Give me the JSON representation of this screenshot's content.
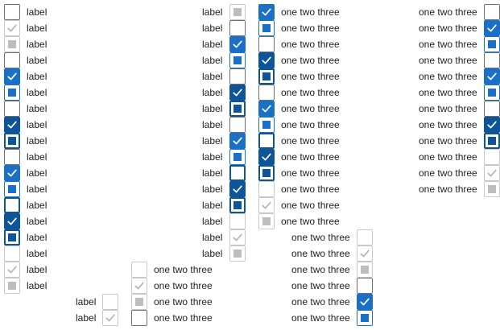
{
  "texts": {
    "label": "label",
    "long": "one two three"
  },
  "colors": {
    "blue": "#1a6fc7",
    "navy": "#0e5597",
    "border": "#6f6f6f",
    "border_light": "#c8c8c8",
    "disabled_fill": "#bdbdbd",
    "check_disabled": "#b5b5b5",
    "text": "#222222"
  },
  "states_legend": {
    "u": "unchecked",
    "c": "checked",
    "i": "indeterminate",
    "fu": "focused-unchecked",
    "fc": "focused-checked",
    "fi": "focused-indeterminate",
    "du": "disabled-unchecked",
    "dc": "disabled-checked",
    "di": "disabled-indeterminate"
  },
  "checkboxes": [
    {
      "id": "a0",
      "text_key": "label",
      "state": "u"
    },
    {
      "id": "a1",
      "text_key": "label",
      "state": "dc"
    },
    {
      "id": "a2",
      "text_key": "label",
      "state": "di"
    },
    {
      "id": "a3",
      "text_key": "label",
      "state": "u"
    },
    {
      "id": "a4",
      "text_key": "label",
      "state": "c"
    },
    {
      "id": "a5",
      "text_key": "label",
      "state": "i"
    },
    {
      "id": "a6",
      "text_key": "label",
      "state": "u"
    },
    {
      "id": "a7",
      "text_key": "label",
      "state": "fc"
    },
    {
      "id": "a8",
      "text_key": "label",
      "state": "fi"
    },
    {
      "id": "a9",
      "text_key": "label",
      "state": "u"
    },
    {
      "id": "a10",
      "text_key": "label",
      "state": "c"
    },
    {
      "id": "a11",
      "text_key": "label",
      "state": "i"
    },
    {
      "id": "a12",
      "text_key": "label",
      "state": "fu"
    },
    {
      "id": "a13",
      "text_key": "label",
      "state": "fc"
    },
    {
      "id": "a14",
      "text_key": "label",
      "state": "fi"
    },
    {
      "id": "a15",
      "text_key": "label",
      "state": "du"
    },
    {
      "id": "a16",
      "text_key": "label",
      "state": "dc"
    },
    {
      "id": "a17",
      "text_key": "label",
      "state": "di"
    },
    {
      "id": "b0",
      "text_key": "label",
      "state": "di"
    },
    {
      "id": "b1",
      "text_key": "label",
      "state": "u"
    },
    {
      "id": "b2",
      "text_key": "label",
      "state": "c"
    },
    {
      "id": "b3",
      "text_key": "label",
      "state": "i"
    },
    {
      "id": "b4",
      "text_key": "label",
      "state": "u"
    },
    {
      "id": "b5",
      "text_key": "label",
      "state": "fc"
    },
    {
      "id": "b6",
      "text_key": "label",
      "state": "fi"
    },
    {
      "id": "b7",
      "text_key": "label",
      "state": "u"
    },
    {
      "id": "b8",
      "text_key": "label",
      "state": "c"
    },
    {
      "id": "b9",
      "text_key": "label",
      "state": "i"
    },
    {
      "id": "b10",
      "text_key": "label",
      "state": "fu"
    },
    {
      "id": "b11",
      "text_key": "label",
      "state": "fc"
    },
    {
      "id": "b12",
      "text_key": "label",
      "state": "fi"
    },
    {
      "id": "b13",
      "text_key": "label",
      "state": "du"
    },
    {
      "id": "b14",
      "text_key": "label",
      "state": "dc"
    },
    {
      "id": "b15",
      "text_key": "label",
      "state": "di"
    },
    {
      "id": "c0",
      "text_key": "long",
      "state": "c"
    },
    {
      "id": "c1",
      "text_key": "long",
      "state": "i"
    },
    {
      "id": "c2",
      "text_key": "long",
      "state": "u"
    },
    {
      "id": "c3",
      "text_key": "long",
      "state": "fc"
    },
    {
      "id": "c4",
      "text_key": "long",
      "state": "fi"
    },
    {
      "id": "c5",
      "text_key": "long",
      "state": "u"
    },
    {
      "id": "c6",
      "text_key": "long",
      "state": "c"
    },
    {
      "id": "c7",
      "text_key": "long",
      "state": "i"
    },
    {
      "id": "c8",
      "text_key": "long",
      "state": "fu"
    },
    {
      "id": "c9",
      "text_key": "long",
      "state": "fc"
    },
    {
      "id": "c10",
      "text_key": "long",
      "state": "fi"
    },
    {
      "id": "c11",
      "text_key": "long",
      "state": "du"
    },
    {
      "id": "c12",
      "text_key": "long",
      "state": "dc"
    },
    {
      "id": "c13",
      "text_key": "long",
      "state": "di"
    },
    {
      "id": "d0",
      "text_key": "long",
      "state": "u"
    },
    {
      "id": "d1",
      "text_key": "long",
      "state": "c"
    },
    {
      "id": "d2",
      "text_key": "long",
      "state": "i"
    },
    {
      "id": "d3",
      "text_key": "long",
      "state": "u"
    },
    {
      "id": "d4",
      "text_key": "long",
      "state": "c"
    },
    {
      "id": "d5",
      "text_key": "long",
      "state": "i"
    },
    {
      "id": "d6",
      "text_key": "long",
      "state": "u"
    },
    {
      "id": "d7",
      "text_key": "long",
      "state": "fc"
    },
    {
      "id": "d8",
      "text_key": "long",
      "state": "fi"
    },
    {
      "id": "d9",
      "text_key": "long",
      "state": "du"
    },
    {
      "id": "d10",
      "text_key": "long",
      "state": "dc"
    },
    {
      "id": "d11",
      "text_key": "long",
      "state": "di"
    },
    {
      "id": "e0",
      "text_key": "long",
      "state": "du"
    },
    {
      "id": "e1",
      "text_key": "long",
      "state": "dc"
    },
    {
      "id": "e2",
      "text_key": "long",
      "state": "di"
    },
    {
      "id": "e3",
      "text_key": "long",
      "state": "u"
    },
    {
      "id": "e4",
      "text_key": "long",
      "state": "c"
    },
    {
      "id": "e5",
      "text_key": "long",
      "state": "i"
    },
    {
      "id": "f0",
      "text_key": "long",
      "state": "du"
    },
    {
      "id": "f1",
      "text_key": "long",
      "state": "dc"
    },
    {
      "id": "f2",
      "text_key": "long",
      "state": "di"
    },
    {
      "id": "f3",
      "text_key": "long",
      "state": "u"
    },
    {
      "id": "g0",
      "text_key": "label",
      "state": "du"
    },
    {
      "id": "g1",
      "text_key": "label",
      "state": "dc"
    }
  ]
}
